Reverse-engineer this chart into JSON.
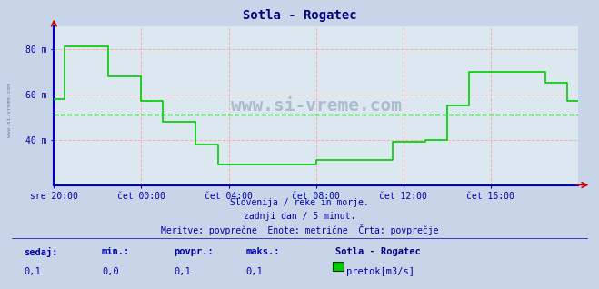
{
  "title": "Sotla - Rogatec",
  "title_color": "#000080",
  "bg_color": "#c8d4e8",
  "plot_bg_color": "#dce8f0",
  "grid_color_major": "#ffaaaa",
  "grid_color_avg": "#00aa00",
  "line_color": "#00cc00",
  "axis_color": "#0000cc",
  "text_color": "#0000aa",
  "ylim": [
    20,
    90
  ],
  "yticks": [
    40,
    60,
    80
  ],
  "ytick_labels": [
    "40 m",
    "60 m",
    "80 m"
  ],
  "avg_line": 51,
  "xlabel_ticks": [
    "sre 20:00",
    "čet 00:00",
    "čet 04:00",
    "čet 08:00",
    "čet 12:00",
    "čet 16:00"
  ],
  "tick_positions": [
    0,
    4,
    8,
    12,
    16,
    20
  ],
  "subtitle1": "Slovenija / reke in morje.",
  "subtitle2": "zadnji dan / 5 minut.",
  "subtitle3": "Meritve: povprečne  Enote: metrične  Črta: povprečje",
  "legend_title": "Sotla - Rogatec",
  "legend_label": "pretok[m3/s]",
  "legend_color": "#00cc00",
  "stat_labels": [
    "sedaj:",
    "min.:",
    "povpr.:",
    "maks.:"
  ],
  "stat_values": [
    "0,1",
    "0,0",
    "0,1",
    "0,1"
  ],
  "watermark": "www.si-vreme.com",
  "x_data": [
    0,
    0.5,
    1,
    1.5,
    2,
    2.5,
    3,
    3.5,
    4,
    4.5,
    5,
    5.5,
    6,
    6.5,
    7,
    7.5,
    8,
    8.5,
    9,
    9.5,
    10,
    10.5,
    11,
    11.5,
    12,
    12.5,
    13,
    13.5,
    14,
    14.5,
    15,
    15.5,
    16,
    16.5,
    17,
    17.5,
    18,
    18.5,
    19,
    19.5,
    20,
    20.5,
    21,
    21.5,
    22,
    22.5,
    23,
    23.5,
    24
  ],
  "y_data": [
    58,
    81,
    81,
    81,
    81,
    68,
    68,
    68,
    57,
    57,
    48,
    48,
    48,
    38,
    38,
    29,
    29,
    29,
    29,
    29,
    29,
    29,
    29,
    29,
    31,
    31,
    31,
    31,
    31,
    31,
    31,
    39,
    39,
    39,
    40,
    40,
    55,
    55,
    70,
    70,
    70,
    70,
    70,
    70,
    70,
    65,
    65,
    57,
    57
  ],
  "xlim": [
    0,
    24
  ]
}
